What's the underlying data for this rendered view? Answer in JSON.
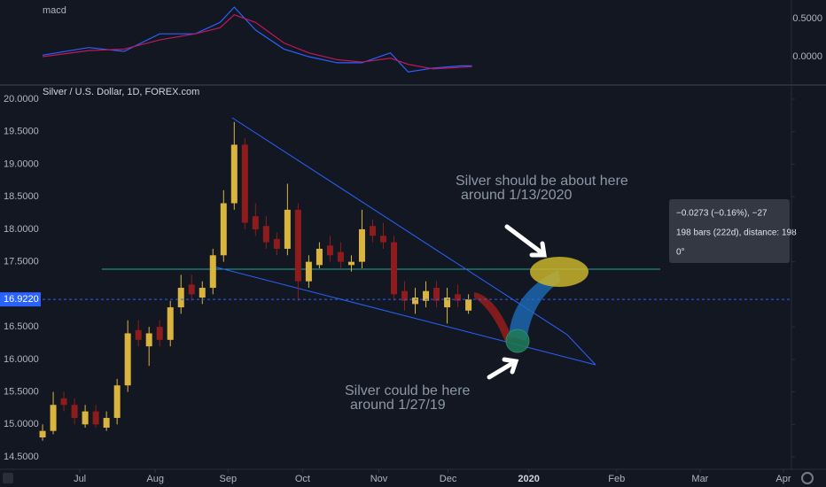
{
  "chart_data": [
    {
      "type": "line",
      "title": "macd",
      "x": [
        12,
        25,
        35,
        45,
        55,
        62,
        66,
        72,
        80,
        87,
        95,
        102,
        110,
        115,
        122,
        130,
        133
      ],
      "series": [
        {
          "color": "#2962ff",
          "values": [
            0.02,
            0.12,
            0.07,
            0.3,
            0.3,
            0.45,
            0.65,
            0.35,
            0.1,
            0.0,
            -0.08,
            -0.08,
            0.05,
            -0.2,
            -0.15,
            -0.12,
            -0.12
          ]
        },
        {
          "color": "#c2185b",
          "values": [
            0.0,
            0.08,
            0.1,
            0.22,
            0.3,
            0.38,
            0.55,
            0.45,
            0.18,
            0.05,
            -0.04,
            -0.07,
            -0.02,
            -0.1,
            -0.16,
            -0.14,
            -0.13
          ]
        }
      ],
      "xlim": [
        0,
        223
      ],
      "ylim": [
        -0.36,
        0.744
      ],
      "yticks": [
        {
          "value": 0.5,
          "label": "0.5000"
        },
        {
          "value": 0,
          "label": "0.0000"
        }
      ]
    },
    {
      "type": "candlestick",
      "title": "Silver / U.S. Dollar, 1D, FOREX.com",
      "x": [
        12,
        15,
        18,
        21,
        24,
        27,
        30,
        33,
        36,
        39,
        42,
        45,
        48,
        51,
        54,
        57,
        60,
        63,
        66,
        69,
        72,
        75,
        78,
        81,
        84,
        87,
        90,
        93,
        96,
        99,
        102,
        105,
        108,
        111,
        114,
        117,
        120,
        123,
        126,
        129,
        132
      ],
      "open": [
        14.8,
        14.9,
        15.4,
        15.3,
        15.0,
        15.2,
        14.95,
        15.1,
        15.6,
        16.45,
        16.2,
        16.5,
        16.3,
        16.8,
        17.15,
        16.95,
        17.1,
        17.6,
        18.4,
        19.3,
        18.2,
        18.05,
        17.85,
        17.7,
        18.3,
        17.2,
        17.45,
        17.75,
        17.65,
        17.45,
        17.5,
        18.05,
        17.9,
        17.8,
        17.05,
        16.85,
        16.9,
        17.1,
        16.8,
        17.0,
        16.75
      ],
      "high": [
        15.0,
        15.5,
        15.5,
        15.4,
        15.3,
        15.3,
        15.2,
        15.7,
        16.6,
        16.6,
        16.5,
        16.6,
        16.9,
        17.3,
        17.3,
        17.2,
        17.7,
        18.6,
        19.65,
        19.4,
        18.4,
        18.2,
        17.95,
        18.7,
        18.4,
        17.6,
        17.8,
        17.9,
        17.8,
        17.6,
        18.3,
        18.15,
        18.1,
        17.9,
        17.2,
        17.1,
        17.2,
        17.2,
        17.1,
        17.15,
        17.0
      ],
      "low": [
        14.75,
        14.85,
        15.2,
        15.0,
        14.95,
        14.95,
        14.9,
        15.0,
        15.5,
        16.2,
        15.9,
        16.2,
        16.2,
        16.7,
        16.9,
        16.85,
        17.0,
        17.5,
        18.3,
        18.0,
        17.9,
        17.7,
        17.6,
        17.6,
        16.9,
        17.1,
        17.4,
        17.5,
        17.4,
        17.35,
        17.4,
        17.8,
        17.7,
        16.9,
        16.75,
        16.7,
        16.8,
        16.8,
        16.55,
        16.8,
        16.7
      ],
      "close": [
        14.9,
        15.3,
        15.3,
        15.1,
        15.2,
        15.0,
        15.1,
        15.6,
        16.4,
        16.3,
        16.4,
        16.3,
        16.8,
        17.1,
        17.0,
        17.1,
        17.6,
        18.4,
        19.3,
        18.1,
        18.0,
        17.8,
        17.7,
        18.3,
        17.2,
        17.5,
        17.7,
        17.6,
        17.5,
        17.5,
        18.0,
        17.9,
        17.8,
        17.0,
        16.9,
        16.95,
        17.05,
        16.9,
        16.95,
        16.9,
        16.922
      ],
      "up_color": "#d9b540",
      "down_color": "#8e1c1c",
      "xlim": [
        0,
        223
      ],
      "xticks": [
        {
          "value": 22.5,
          "label": "Jul"
        },
        {
          "value": 43.75,
          "label": "Aug"
        },
        {
          "value": 64.25,
          "label": "Sep"
        },
        {
          "value": 85.25,
          "label": "Oct"
        },
        {
          "value": 106.75,
          "label": "Nov"
        },
        {
          "value": 126.25,
          "label": "Dec"
        },
        {
          "value": 149,
          "label": "2020"
        },
        {
          "value": 173.75,
          "label": "Feb"
        },
        {
          "value": 197.25,
          "label": "Mar"
        },
        {
          "value": 220.75,
          "label": "Apr"
        }
      ],
      "ylim": [
        14.31,
        20.204
      ],
      "yticks": [
        {
          "value": 14.5,
          "label": "14.5000"
        },
        {
          "value": 15,
          "label": "15.0000"
        },
        {
          "value": 15.5,
          "label": "15.5000"
        },
        {
          "value": 16,
          "label": "16.0000"
        },
        {
          "value": 16.5,
          "label": "16.5000"
        },
        {
          "value": 17.5,
          "label": "17.5000"
        },
        {
          "value": 18,
          "label": "18.0000"
        },
        {
          "value": 18.5,
          "label": "18.5000"
        },
        {
          "value": 19,
          "label": "19.0000"
        },
        {
          "value": 19.5,
          "label": "19.5000"
        },
        {
          "value": 20,
          "label": "20.0000"
        }
      ],
      "last_price": {
        "value": 16.922,
        "label": "16.9220"
      },
      "annotations": [
        "Silver should be about here",
        "around 1/13/2020",
        "Silver could be here",
        "around 1/27/19"
      ],
      "measure": [
        "−0.0273 (−0.16%), −27",
        "198 bars (222d), distance: 198",
        "0°"
      ]
    }
  ]
}
